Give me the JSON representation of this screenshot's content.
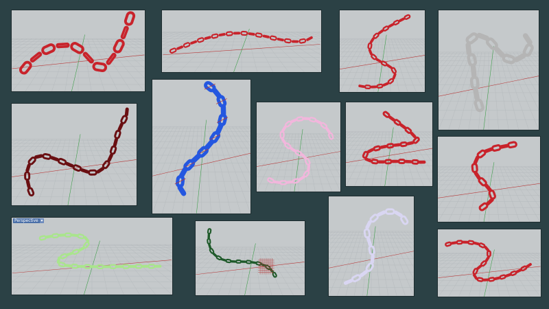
{
  "viewport_label": "Perspective",
  "viewport_menu_glyph": "▾",
  "colors": {
    "background": "#2b4145",
    "viewport_bg": "#c5c9cb",
    "grid": "#b5babd",
    "axis_x": "#b83a3a",
    "axis_y": "#3e9e4a",
    "chain_red": "#c8232b",
    "chain_darkred": "#6a0f12",
    "chain_blue": "#2457e0",
    "chain_pink": "#f2b6dc",
    "chain_silver": "#b5b5b5",
    "chain_green": "#a9e58c",
    "chain_darkgreen": "#1f5a2a",
    "chain_lavender": "#d9d6f2"
  },
  "panels": [
    {
      "name": "large-red-links",
      "chain": "chain_red"
    },
    {
      "name": "thin-red-chain-horizontal",
      "chain": "chain_red"
    },
    {
      "name": "red-s-curve",
      "chain": "chain_red"
    },
    {
      "name": "silver-chain",
      "chain": "chain_silver"
    },
    {
      "name": "dark-red-wavy-chain",
      "chain": "chain_darkred"
    },
    {
      "name": "blue-selected-chain",
      "chain": "chain_blue"
    },
    {
      "name": "pink-s-chain",
      "chain": "chain_pink"
    },
    {
      "name": "red-wave-chain",
      "chain": "chain_red"
    },
    {
      "name": "red-loose-chain",
      "chain": "chain_red"
    },
    {
      "name": "green-perspective-chain",
      "chain": "chain_green"
    },
    {
      "name": "dark-green-chain",
      "chain": "chain_darkgreen"
    },
    {
      "name": "lavender-chain",
      "chain": "chain_lavender"
    },
    {
      "name": "red-s-chain-small",
      "chain": "chain_red"
    }
  ]
}
